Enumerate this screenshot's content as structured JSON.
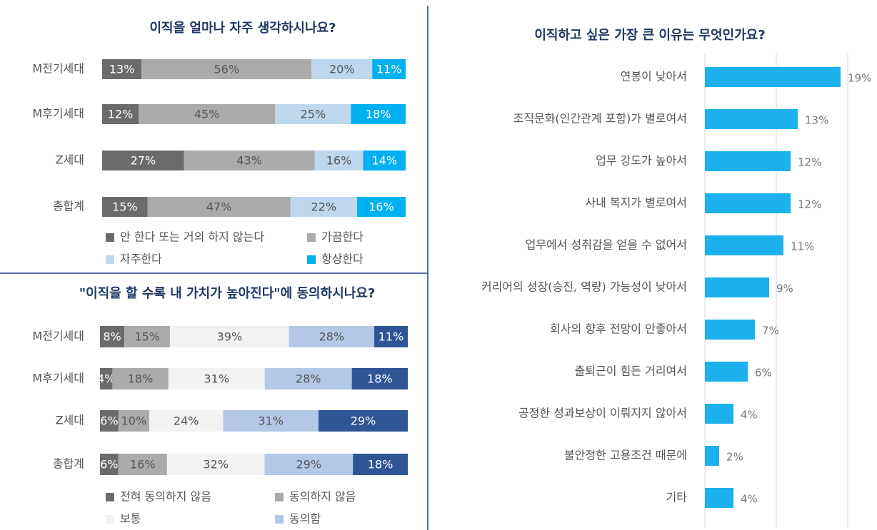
{
  "chart_data": [
    {
      "type": "stacked-bar-h",
      "title": "이직을 얼마나 자주 생각하시나요?",
      "categories": [
        "M전기세대",
        "M후기세대",
        "Z세대",
        "총합계"
      ],
      "series": [
        {
          "name": "안 한다 또는 거의 하지 않는다",
          "color": "#6b6b6b",
          "values": [
            13,
            12,
            27,
            15
          ],
          "value_labels": [
            "13%",
            "12%",
            "27%",
            "15%"
          ]
        },
        {
          "name": "가끔한다",
          "color": "#ababab",
          "values": [
            56,
            45,
            43,
            47
          ],
          "value_labels": [
            "56%",
            "45%",
            "43%",
            "47%"
          ]
        },
        {
          "name": "자주한다",
          "color": "#bdd7ee",
          "values": [
            20,
            25,
            16,
            22
          ],
          "value_labels": [
            "20%",
            "25%",
            "16%",
            "22%"
          ]
        },
        {
          "name": "항상한다",
          "color": "#00b0f0",
          "values": [
            11,
            18,
            14,
            16
          ],
          "value_labels": [
            "11%",
            "18%",
            "14%",
            "16%"
          ]
        }
      ]
    },
    {
      "type": "stacked-bar-h",
      "title": "\"이직을 할 수록 내 가치가 높아진다\"에 동의하시나요?",
      "categories": [
        "M전기세대",
        "M후기세대",
        "Z세대",
        "총합계"
      ],
      "series": [
        {
          "name": "전혀 동의하지 않음",
          "color": "#6b6b6b",
          "values": [
            8,
            4,
            6,
            6
          ],
          "value_labels": [
            "8%",
            "4%",
            "6%",
            "6%"
          ]
        },
        {
          "name": "동의하지 않음",
          "color": "#ababab",
          "values": [
            15,
            18,
            10,
            16
          ],
          "value_labels": [
            "15%",
            "18%",
            "10%",
            "16%"
          ]
        },
        {
          "name": "보통",
          "color": "#f2f2f2",
          "values": [
            39,
            31,
            24,
            32
          ],
          "value_labels": [
            "39%",
            "31%",
            "24%",
            "32%"
          ]
        },
        {
          "name": "동의함",
          "color": "#b4c7e7",
          "values": [
            28,
            28,
            31,
            29
          ],
          "value_labels": [
            "28%",
            "28%",
            "31%",
            "29%"
          ]
        },
        {
          "color": "#2f5597",
          "values": [
            11,
            18,
            29,
            18
          ],
          "value_labels": [
            "11%",
            "18%",
            "29%",
            "18%"
          ]
        }
      ]
    },
    {
      "type": "bar-h",
      "title": "이직하고 싶은 가장 큰 이유는 무엇인가요?",
      "categories": [
        "연봉이 낮아서",
        "조직문화(인간관계 포함)가 별로여서",
        "업무 강도가 높아서",
        "사내 복지가 별로여서",
        "업무에서 성취감을 얻을 수 없어서",
        "커리어의 성장(승진, 역량) 가능성이 낮아서",
        "회사의 향후 전망이 안좋아서",
        "출퇴근이 힘든 거리여서",
        "공정한 성과보상이 이뤄지지 않아서",
        "불안정한 고용조건 때문에",
        "기타"
      ],
      "values": [
        19,
        13,
        12,
        12,
        11,
        9,
        7,
        6,
        4,
        2,
        4
      ],
      "value_labels": [
        "19%",
        "13%",
        "12%",
        "12%",
        "11%",
        "9%",
        "7%",
        "6%",
        "4%",
        "2%",
        "4%"
      ],
      "color": "#1cb0ec",
      "xlim": [
        0,
        20
      ],
      "xticks": [
        0,
        10,
        20
      ],
      "grid": true
    }
  ]
}
